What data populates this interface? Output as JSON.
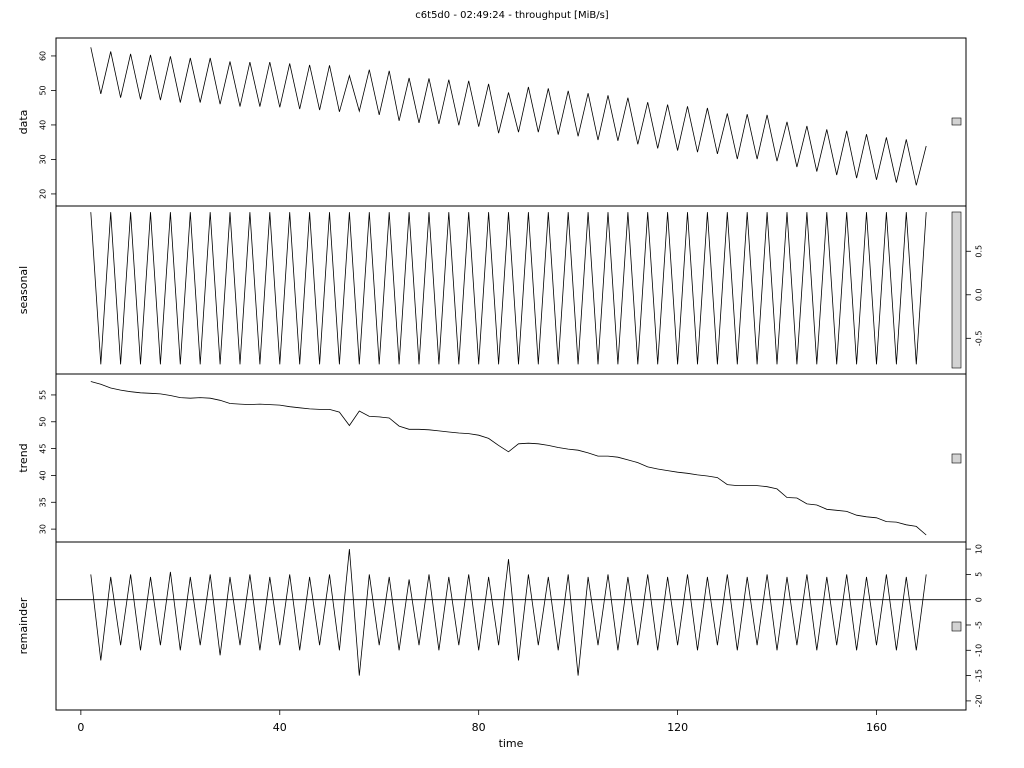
{
  "chart_data": [
    {
      "type": "line",
      "title": "c6t5d0 - 02:49:24 - throughput [MiB/s]",
      "ylabel": "data",
      "x": [
        2,
        4,
        6,
        8,
        10,
        12,
        14,
        16,
        18,
        20,
        22,
        24,
        26,
        28,
        30,
        32,
        34,
        36,
        38,
        40,
        42,
        44,
        46,
        48,
        50,
        52,
        54,
        56,
        58,
        60,
        62,
        64,
        66,
        68,
        70,
        72,
        74,
        76,
        78,
        80,
        82,
        84,
        86,
        88,
        90,
        92,
        94,
        96,
        98,
        100,
        102,
        104,
        106,
        108,
        110,
        112,
        114,
        116,
        118,
        120,
        122,
        124,
        126,
        128,
        130,
        132,
        134,
        136,
        138,
        140,
        142,
        144,
        146,
        148,
        150,
        152,
        154,
        156,
        158,
        160,
        162,
        164,
        166,
        168,
        170
      ],
      "values": [
        62.5,
        49,
        61.3,
        47.9,
        60.6,
        47.4,
        60.3,
        47.2,
        59.9,
        46.5,
        59.4,
        46.5,
        59.4,
        46,
        58.4,
        45.3,
        58.2,
        45.3,
        58.2,
        45.1,
        57.8,
        44.6,
        57.4,
        44.3,
        57.3,
        43.8,
        54.3,
        44,
        56,
        42.9,
        55.7,
        41.2,
        53.6,
        40.6,
        53.5,
        40.3,
        53.1,
        39.9,
        52.8,
        39.5,
        51.9,
        37.6,
        49.4,
        37.9,
        51,
        37.9,
        50.6,
        37.2,
        49.9,
        36.7,
        49.2,
        35.6,
        48.6,
        35.4,
        47.9,
        34.4,
        46.6,
        33.2,
        45.9,
        32.6,
        45.4,
        32.1,
        44.9,
        31.6,
        43.3,
        30.1,
        43.1,
        30.1,
        42.9,
        29.5,
        40.9,
        27.8,
        39.7,
        26.5,
        38.7,
        25.5,
        38.3,
        24.6,
        37.3,
        24.1,
        36.4,
        23.3,
        35.8,
        22.5,
        33.9
      ],
      "color": "#000000",
      "xlim": [
        -5,
        178
      ],
      "ylim": [
        16.5,
        65.2
      ],
      "yticks": [
        20,
        30,
        40,
        50,
        60
      ]
    },
    {
      "type": "line",
      "ylabel": "seasonal",
      "x": [
        2,
        4,
        6,
        8,
        10,
        12,
        14,
        16,
        18,
        20,
        22,
        24,
        26,
        28,
        30,
        32,
        34,
        36,
        38,
        40,
        42,
        44,
        46,
        48,
        50,
        52,
        54,
        56,
        58,
        60,
        62,
        64,
        66,
        68,
        70,
        72,
        74,
        76,
        78,
        80,
        82,
        84,
        86,
        88,
        90,
        92,
        94,
        96,
        98,
        100,
        102,
        104,
        106,
        108,
        110,
        112,
        114,
        116,
        118,
        120,
        122,
        124,
        126,
        128,
        130,
        132,
        134,
        136,
        138,
        140,
        142,
        144,
        146,
        148,
        150,
        152,
        154,
        156,
        158,
        160,
        162,
        164,
        166,
        168,
        170
      ],
      "values": [
        0.95,
        -0.8,
        0.95,
        -0.8,
        0.95,
        -0.8,
        0.95,
        -0.8,
        0.95,
        -0.8,
        0.95,
        -0.8,
        0.95,
        -0.8,
        0.95,
        -0.8,
        0.95,
        -0.8,
        0.95,
        -0.8,
        0.95,
        -0.8,
        0.95,
        -0.8,
        0.95,
        -0.8,
        0.95,
        -0.8,
        0.95,
        -0.8,
        0.95,
        -0.8,
        0.95,
        -0.8,
        0.95,
        -0.8,
        0.95,
        -0.8,
        0.95,
        -0.8,
        0.95,
        -0.8,
        0.95,
        -0.8,
        0.95,
        -0.8,
        0.95,
        -0.8,
        0.95,
        -0.8,
        0.95,
        -0.8,
        0.95,
        -0.8,
        0.95,
        -0.8,
        0.95,
        -0.8,
        0.95,
        -0.8,
        0.95,
        -0.8,
        0.95,
        -0.8,
        0.95,
        -0.8,
        0.95,
        -0.8,
        0.95,
        -0.8,
        0.95,
        -0.8,
        0.95,
        -0.8,
        0.95,
        -0.8,
        0.95,
        -0.8,
        0.95,
        -0.8,
        0.95,
        -0.8,
        0.95,
        -0.8,
        0.95
      ],
      "color": "#000000",
      "xlim": [
        -5,
        178
      ],
      "ylim": [
        -0.91,
        1.02
      ],
      "yticks": [
        -0.5,
        {
          "value": 0,
          "label": "0.0"
        },
        0.5
      ]
    },
    {
      "type": "line",
      "ylabel": "trend",
      "x": [
        2,
        4,
        6,
        8,
        10,
        12,
        14,
        16,
        18,
        20,
        22,
        24,
        26,
        28,
        30,
        32,
        34,
        36,
        38,
        40,
        42,
        44,
        46,
        48,
        50,
        52,
        54,
        56,
        58,
        60,
        62,
        64,
        66,
        68,
        70,
        72,
        74,
        76,
        78,
        80,
        82,
        84,
        86,
        88,
        90,
        92,
        94,
        96,
        98,
        100,
        102,
        104,
        106,
        108,
        110,
        112,
        114,
        116,
        118,
        120,
        122,
        124,
        126,
        128,
        130,
        132,
        134,
        136,
        138,
        140,
        142,
        144,
        146,
        148,
        150,
        152,
        154,
        156,
        158,
        160,
        162,
        164,
        166,
        168,
        170
      ],
      "values": [
        57.5,
        57,
        56.3,
        55.9,
        55.6,
        55.4,
        55.3,
        55.2,
        54.9,
        54.5,
        54.4,
        54.5,
        54.4,
        54,
        53.4,
        53.3,
        53.2,
        53.3,
        53.2,
        53.1,
        52.8,
        52.6,
        52.4,
        52.3,
        52.3,
        51.8,
        49.3,
        52,
        51,
        50.9,
        50.7,
        49.2,
        48.6,
        48.6,
        48.5,
        48.3,
        48.1,
        47.9,
        47.8,
        47.5,
        46.9,
        45.6,
        44.4,
        45.9,
        46,
        45.9,
        45.6,
        45.2,
        44.9,
        44.7,
        44.2,
        43.6,
        43.6,
        43.4,
        42.9,
        42.4,
        41.6,
        41.2,
        40.9,
        40.6,
        40.4,
        40.1,
        39.9,
        39.6,
        38.3,
        38.1,
        38.1,
        38.1,
        37.9,
        37.5,
        35.9,
        35.8,
        34.7,
        34.5,
        33.7,
        33.5,
        33.3,
        32.6,
        32.3,
        32.1,
        31.4,
        31.3,
        30.8,
        30.5,
        28.9
      ],
      "color": "#000000",
      "xlim": [
        -5,
        178
      ],
      "ylim": [
        27.6,
        58.9
      ],
      "yticks": [
        30,
        35,
        40,
        45,
        50,
        55
      ]
    },
    {
      "type": "line",
      "ylabel": "remainder",
      "xlabel": "time",
      "x": [
        2,
        4,
        6,
        8,
        10,
        12,
        14,
        16,
        18,
        20,
        22,
        24,
        26,
        28,
        30,
        32,
        34,
        36,
        38,
        40,
        42,
        44,
        46,
        48,
        50,
        52,
        54,
        56,
        58,
        60,
        62,
        64,
        66,
        68,
        70,
        72,
        74,
        76,
        78,
        80,
        82,
        84,
        86,
        88,
        90,
        92,
        94,
        96,
        98,
        100,
        102,
        104,
        106,
        108,
        110,
        112,
        114,
        116,
        118,
        120,
        122,
        124,
        126,
        128,
        130,
        132,
        134,
        136,
        138,
        140,
        142,
        144,
        146,
        148,
        150,
        152,
        154,
        156,
        158,
        160,
        162,
        164,
        166,
        168,
        170
      ],
      "values": [
        5,
        -12,
        4.5,
        -9,
        5,
        -10,
        4.5,
        -9,
        5.5,
        -10,
        4.5,
        -9,
        5,
        -11,
        4.5,
        -9,
        5,
        -10,
        4.5,
        -9,
        5,
        -10,
        4.5,
        -9,
        5,
        -10,
        10,
        -15,
        5,
        -9,
        4.5,
        -10,
        4,
        -9,
        5,
        -10,
        4.5,
        -9,
        5,
        -10,
        4.5,
        -9,
        8,
        -12,
        5,
        -9,
        4.5,
        -10,
        5,
        -15,
        4.5,
        -9,
        5,
        -10,
        4.5,
        -9,
        5,
        -10,
        4.5,
        -9,
        5,
        -10,
        4.5,
        -9,
        5,
        -10,
        4.5,
        -9,
        5,
        -10,
        4.5,
        -9,
        5,
        -10,
        4.5,
        -9,
        5,
        -10,
        4.5,
        -9,
        5,
        -10,
        4.5,
        -10,
        5
      ],
      "color": "#000000",
      "xlim": [
        -5,
        178
      ],
      "ylim": [
        -21.8,
        11.4
      ],
      "yticks": [
        -20,
        -15,
        -10,
        -5,
        0,
        5,
        10
      ],
      "xticks": [
        0,
        40,
        80,
        120,
        160
      ]
    }
  ]
}
